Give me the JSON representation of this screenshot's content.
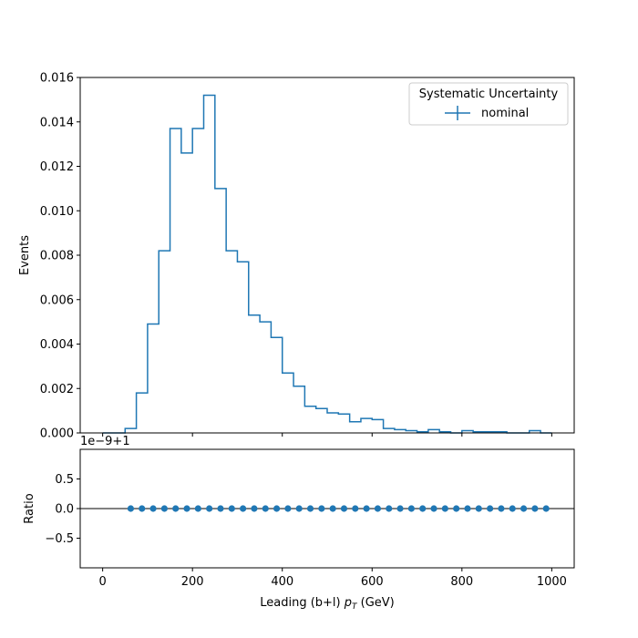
{
  "chart_data": [
    {
      "type": "step",
      "xlabel_prefix": "Leading (b+l) ",
      "xlabel_symbol": "p",
      "xlabel_subscript": "T",
      "xlabel_suffix": " (GeV)",
      "ylabel": "Events",
      "xlim": [
        -50,
        1050
      ],
      "ylim": [
        0,
        0.016
      ],
      "yticks": [
        0.0,
        0.002,
        0.004,
        0.006,
        0.008,
        0.01,
        0.012,
        0.014,
        0.016
      ],
      "ytick_labels": [
        "0.000",
        "0.002",
        "0.004",
        "0.006",
        "0.008",
        "0.010",
        "0.012",
        "0.014",
        "0.016"
      ],
      "xticks": [
        0,
        200,
        400,
        600,
        800,
        1000
      ],
      "legend": {
        "title": "Systematic Uncertainty",
        "placement": "upper right",
        "entries": [
          "nominal"
        ]
      },
      "bin_edges": [
        0,
        25,
        50,
        75,
        100,
        125,
        150,
        175,
        200,
        225,
        250,
        275,
        300,
        325,
        350,
        375,
        400,
        425,
        450,
        475,
        500,
        525,
        550,
        575,
        600,
        625,
        650,
        675,
        700,
        725,
        750,
        775,
        800,
        825,
        850,
        875,
        900,
        925,
        950,
        975,
        1000
      ],
      "series": [
        {
          "name": "nominal",
          "color": "#1f77b4",
          "values": [
            0.0,
            0.0,
            0.0002,
            0.0018,
            0.0049,
            0.0082,
            0.0137,
            0.0126,
            0.0137,
            0.0152,
            0.011,
            0.0082,
            0.0077,
            0.0053,
            0.005,
            0.0043,
            0.0027,
            0.0021,
            0.0012,
            0.0011,
            0.0009,
            0.00085,
            0.0005,
            0.00065,
            0.0006,
            0.0002,
            0.00015,
            0.0001,
            5e-05,
            0.00015,
            5e-05,
            0.0,
            0.0001,
            5e-05,
            5e-05,
            5e-05,
            0.0,
            0.0,
            0.0001,
            0.0
          ]
        }
      ]
    },
    {
      "type": "scatter",
      "ylabel": "Ratio",
      "offset_label": "1e−9+1",
      "xlim": [
        -50,
        1050
      ],
      "ylim": [
        -1,
        1
      ],
      "yticks": [
        -0.5,
        0.0,
        0.5
      ],
      "ytick_labels": [
        "−0.5",
        "0.0",
        "0.5"
      ],
      "xticks": [
        0,
        200,
        400,
        600,
        800,
        1000
      ],
      "xtick_labels": [
        "0",
        "200",
        "400",
        "600",
        "800",
        "1000"
      ],
      "reference_line": 0.0,
      "series": [
        {
          "name": "nominal",
          "color": "#1f77b4",
          "x": [
            62.5,
            87.5,
            112.5,
            137.5,
            162.5,
            187.5,
            212.5,
            237.5,
            262.5,
            287.5,
            312.5,
            337.5,
            362.5,
            387.5,
            412.5,
            437.5,
            462.5,
            487.5,
            512.5,
            537.5,
            562.5,
            587.5,
            612.5,
            637.5,
            662.5,
            687.5,
            712.5,
            737.5,
            762.5,
            787.5,
            812.5,
            837.5,
            862.5,
            887.5,
            912.5,
            937.5,
            962.5,
            987.5
          ],
          "y": [
            0.0,
            0.0,
            0.0,
            0.0,
            0.0,
            0.0,
            0.0,
            0.0,
            0.0,
            0.0,
            0.0,
            0.0,
            0.0,
            0.0,
            0.0,
            0.0,
            0.0,
            0.0,
            0.0,
            0.0,
            0.0,
            0.0,
            0.0,
            0.0,
            0.0,
            0.0,
            0.0,
            0.0,
            0.0,
            0.0,
            0.0,
            0.0,
            0.0,
            0.0,
            0.0,
            0.0,
            0.0,
            0.0
          ]
        }
      ]
    }
  ]
}
